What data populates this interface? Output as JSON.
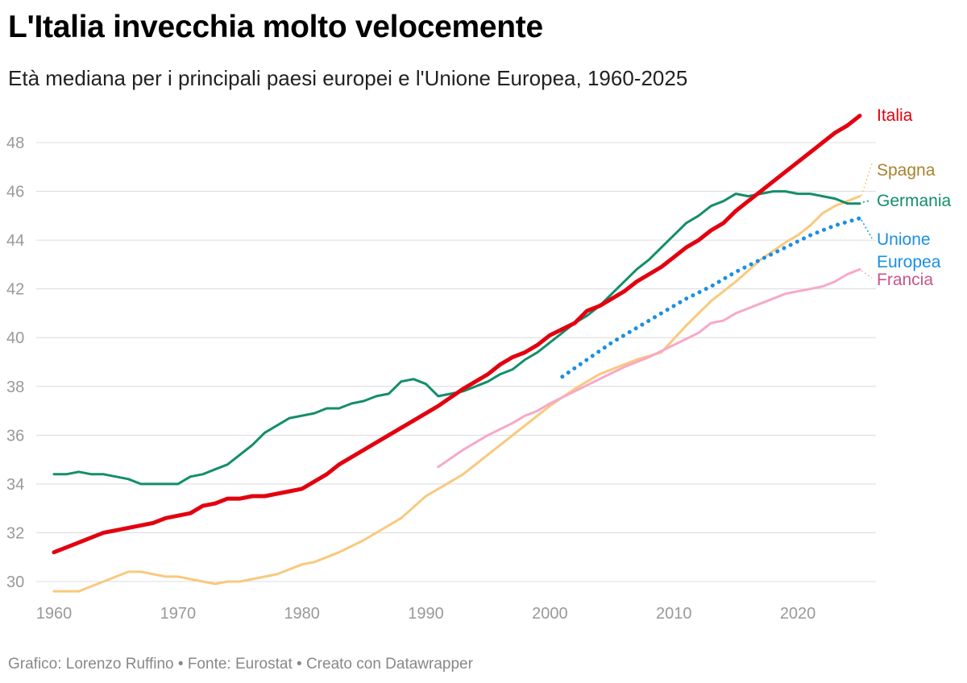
{
  "title": "L'Italia invecchia molto velocemente",
  "subtitle": "Età mediana per i principali paesi europei e l'Unione Europea, 1960-2025",
  "footer": {
    "author": "Grafico: Lorenzo Ruffino",
    "source": "Fonte: Eurostat",
    "tool": "Creato con Datawrapper",
    "separator": " • "
  },
  "chart_data": {
    "type": "line",
    "title": "L'Italia invecchia molto velocemente",
    "subtitle": "Età mediana per i principali paesi europei e l'Unione Europea, 1960-2025",
    "xlabel": "",
    "ylabel": "",
    "xlim": [
      1960,
      2025
    ],
    "ylim": [
      29.5,
      49.5
    ],
    "x_ticks": [
      1960,
      1970,
      1980,
      1990,
      2000,
      2010,
      2020
    ],
    "y_ticks": [
      30,
      32,
      34,
      36,
      38,
      40,
      42,
      44,
      46,
      48
    ],
    "grid": "horizontal",
    "legend": "direct labels at line ends (right)",
    "series": [
      {
        "name": "Spagna",
        "label": "Spagna",
        "color": "#f8c97d",
        "label_color": "#a8832f",
        "style": "solid",
        "x": [
          1960,
          1962,
          1964,
          1966,
          1967,
          1969,
          1970,
          1971,
          1973,
          1974,
          1975,
          1976,
          1978,
          1980,
          1981,
          1983,
          1985,
          1988,
          1990,
          1992,
          1993,
          1995,
          1997,
          2000,
          2002,
          2004,
          2006,
          2007,
          2009,
          2011,
          2013,
          2015,
          2017,
          2019,
          2020,
          2021,
          2022,
          2023,
          2024,
          2025
        ],
        "values": [
          29.6,
          29.6,
          30.0,
          30.4,
          30.4,
          30.2,
          30.2,
          30.1,
          29.9,
          30.0,
          30.0,
          30.1,
          30.3,
          30.7,
          30.8,
          31.2,
          31.7,
          32.6,
          33.5,
          34.1,
          34.4,
          35.2,
          36.0,
          37.2,
          37.9,
          38.5,
          38.9,
          39.1,
          39.4,
          40.5,
          41.5,
          42.3,
          43.2,
          43.9,
          44.2,
          44.6,
          45.1,
          45.4,
          45.6,
          45.8
        ]
      },
      {
        "name": "Germania",
        "label": "Germania",
        "color": "#138e6a",
        "label_color": "#138e6a",
        "style": "solid",
        "x": [
          1960,
          1961,
          1962,
          1963,
          1964,
          1966,
          1967,
          1968,
          1969,
          1970,
          1971,
          1972,
          1973,
          1974,
          1975,
          1976,
          1977,
          1978,
          1979,
          1980,
          1981,
          1982,
          1983,
          1984,
          1985,
          1986,
          1987,
          1988,
          1989,
          1990,
          1991,
          1992,
          1993,
          1994,
          1995,
          1996,
          1997,
          1998,
          1999,
          2000,
          2001,
          2002,
          2003,
          2004,
          2005,
          2006,
          2007,
          2008,
          2009,
          2010,
          2011,
          2012,
          2013,
          2014,
          2015,
          2016,
          2017,
          2018,
          2019,
          2020,
          2021,
          2022,
          2023,
          2024,
          2025
        ],
        "values": [
          34.4,
          34.4,
          34.5,
          34.4,
          34.4,
          34.2,
          34.0,
          34.0,
          34.0,
          34.0,
          34.3,
          34.4,
          34.6,
          34.8,
          35.2,
          35.6,
          36.1,
          36.4,
          36.7,
          36.8,
          36.9,
          37.1,
          37.1,
          37.3,
          37.4,
          37.6,
          37.7,
          38.2,
          38.3,
          38.1,
          37.6,
          37.7,
          37.8,
          38.0,
          38.2,
          38.5,
          38.7,
          39.1,
          39.4,
          39.8,
          40.2,
          40.6,
          40.9,
          41.3,
          41.8,
          42.3,
          42.8,
          43.2,
          43.7,
          44.2,
          44.7,
          45.0,
          45.4,
          45.6,
          45.9,
          45.8,
          45.9,
          46.0,
          46.0,
          45.9,
          45.9,
          45.8,
          45.7,
          45.5,
          45.5
        ]
      },
      {
        "name": "Italia",
        "label": "Italia",
        "color": "#e3000f",
        "label_color": "#e3000f",
        "style": "solid-bold",
        "x": [
          1960,
          1962,
          1964,
          1966,
          1968,
          1969,
          1971,
          1972,
          1973,
          1974,
          1975,
          1976,
          1977,
          1978,
          1979,
          1980,
          1981,
          1982,
          1983,
          1985,
          1987,
          1989,
          1991,
          1993,
          1995,
          1996,
          1997,
          1998,
          1999,
          2000,
          2002,
          2003,
          2004,
          2005,
          2006,
          2007,
          2008,
          2009,
          2010,
          2011,
          2012,
          2013,
          2014,
          2015,
          2016,
          2017,
          2018,
          2019,
          2020,
          2021,
          2022,
          2023,
          2024,
          2025
        ],
        "values": [
          31.2,
          31.6,
          32.0,
          32.2,
          32.4,
          32.6,
          32.8,
          33.1,
          33.2,
          33.4,
          33.4,
          33.5,
          33.5,
          33.6,
          33.7,
          33.8,
          34.1,
          34.4,
          34.8,
          35.4,
          36.0,
          36.6,
          37.2,
          37.9,
          38.5,
          38.9,
          39.2,
          39.4,
          39.7,
          40.1,
          40.6,
          41.1,
          41.3,
          41.6,
          41.9,
          42.3,
          42.6,
          42.9,
          43.3,
          43.7,
          44.0,
          44.4,
          44.7,
          45.2,
          45.6,
          46.0,
          46.4,
          46.8,
          47.2,
          47.6,
          48.0,
          48.4,
          48.7,
          49.1
        ]
      },
      {
        "name": "Francia",
        "label": "Francia",
        "color": "#f7a8c9",
        "label_color": "#c9558c",
        "style": "solid",
        "x": [
          1991,
          1993,
          1995,
          1997,
          1998,
          1999,
          2000,
          2002,
          2004,
          2006,
          2008,
          2010,
          2012,
          2013,
          2014,
          2015,
          2016,
          2017,
          2018,
          2019,
          2020,
          2021,
          2022,
          2023,
          2024,
          2025
        ],
        "values": [
          34.7,
          35.4,
          36.0,
          36.5,
          36.8,
          37.0,
          37.3,
          37.8,
          38.3,
          38.8,
          39.2,
          39.7,
          40.2,
          40.6,
          40.7,
          41.0,
          41.2,
          41.4,
          41.6,
          41.8,
          41.9,
          42.0,
          42.1,
          42.3,
          42.6,
          42.8
        ]
      },
      {
        "name": "Unione Europea",
        "label": [
          "Unione",
          "Europea"
        ],
        "color": "#1a8fe3",
        "label_color": "#1a8fe3",
        "style": "dotted",
        "x": [
          2001,
          2003,
          2005,
          2007,
          2009,
          2011,
          2013,
          2015,
          2017,
          2019,
          2021,
          2023,
          2025
        ],
        "values": [
          38.4,
          39.1,
          39.8,
          40.4,
          41.0,
          41.6,
          42.1,
          42.7,
          43.2,
          43.7,
          44.2,
          44.6,
          44.9
        ]
      }
    ]
  }
}
